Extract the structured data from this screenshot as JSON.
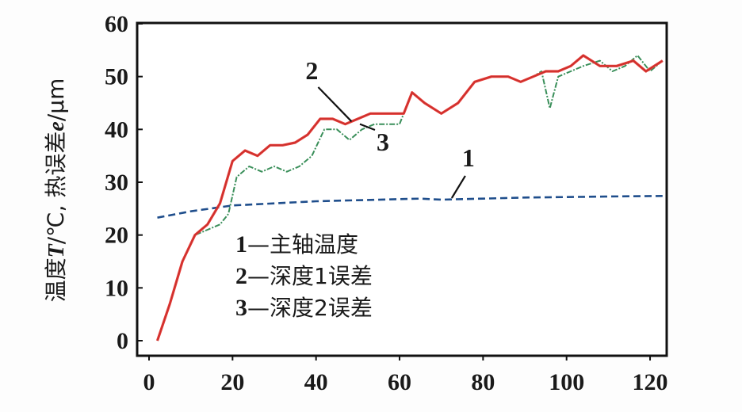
{
  "chart_data": {
    "type": "line",
    "title": "",
    "xlabel": "",
    "ylabel": "温度T/℃, 热误差e/μm",
    "xlim": [
      0,
      125
    ],
    "ylim": [
      -2,
      60
    ],
    "x_ticks": [
      0,
      20,
      40,
      60,
      80,
      100,
      120
    ],
    "y_ticks": [
      0,
      10,
      20,
      30,
      40,
      50,
      60
    ],
    "grid": false,
    "legend_position": "inside-lower-left",
    "legend": [
      {
        "label": "1—主轴温度",
        "num": "1",
        "text": "主轴温度"
      },
      {
        "label": "2—深度1误差",
        "num": "2",
        "text": "深度1误差"
      },
      {
        "label": "3—深度2误差",
        "num": "3",
        "text": "深度2误差"
      }
    ],
    "series": [
      {
        "name": "1—主轴温度",
        "id": "1",
        "style": "dashed",
        "color": "#1f4e8c",
        "x": [
          2,
          10,
          20,
          30,
          40,
          50,
          60,
          65,
          70,
          75,
          80,
          90,
          100,
          110,
          123
        ],
        "y": [
          23.3,
          24.5,
          25.6,
          26.0,
          26.4,
          26.6,
          26.8,
          26.9,
          26.7,
          26.8,
          26.9,
          27.1,
          27.2,
          27.3,
          27.4
        ]
      },
      {
        "name": "2—深度1误差",
        "id": "2",
        "style": "solid",
        "color": "#e53935",
        "x": [
          2,
          5,
          8,
          11,
          14,
          17,
          20,
          23,
          26,
          29,
          32,
          35,
          38,
          41,
          44,
          47,
          50,
          53,
          56,
          59,
          61,
          63,
          66,
          70,
          74,
          78,
          82,
          86,
          89,
          92,
          95,
          98,
          101,
          104,
          108,
          112,
          116,
          119,
          123
        ],
        "y": [
          0,
          7,
          15,
          20,
          22,
          26,
          34,
          36,
          35,
          37,
          37,
          37.5,
          39,
          42,
          42,
          41,
          42,
          43,
          43,
          43,
          43,
          47,
          45,
          43,
          45,
          49,
          50,
          50,
          49,
          50,
          51,
          51,
          52,
          54,
          52,
          52,
          53,
          51,
          53
        ]
      },
      {
        "name": "3—深度2误差",
        "id": "3",
        "style": "dotted-solid",
        "color": "#3a8f5a",
        "x": [
          2,
          5,
          8,
          11,
          14,
          17,
          19,
          21,
          24,
          27,
          30,
          33,
          36,
          39,
          42,
          45,
          48,
          51,
          54,
          57,
          60,
          63,
          66,
          70,
          74,
          78,
          82,
          86,
          89,
          92,
          94,
          96,
          98,
          101,
          104,
          108,
          111,
          114,
          117,
          120,
          123
        ],
        "y": [
          0,
          7,
          15,
          20,
          21,
          22,
          24,
          31,
          33,
          32,
          33,
          32,
          33,
          35,
          40,
          40,
          38,
          40,
          41,
          41,
          41,
          47,
          45,
          43,
          45,
          49,
          50,
          50,
          49,
          50,
          51,
          44,
          50,
          51,
          52,
          53,
          51,
          52,
          54,
          51,
          53
        ]
      }
    ],
    "annotations": [
      {
        "text": "2",
        "x": 39,
        "y": 49.5,
        "leader_to": [
          48.5,
          41.5
        ]
      },
      {
        "text": "3",
        "x": 56,
        "y": 36,
        "leader_to": [
          50.5,
          41
        ]
      },
      {
        "text": "1",
        "x": 76.5,
        "y": 33,
        "leader_to": [
          72.5,
          27
        ]
      }
    ]
  }
}
